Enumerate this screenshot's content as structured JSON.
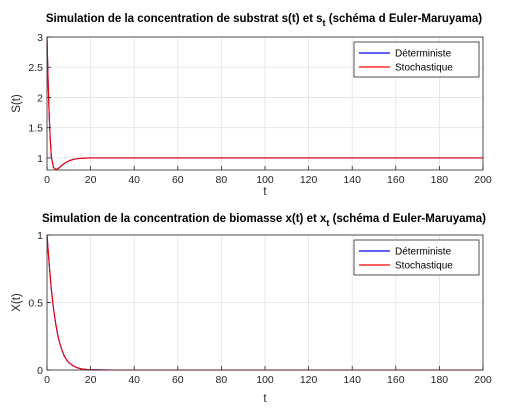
{
  "chart_data": [
    {
      "type": "line",
      "title": "Simulation de la concentration de substrat s(t) et s",
      "title_sub": "t",
      "title_tail": " (schéma d Euler-Maruyama)",
      "xlabel": "t",
      "ylabel": "S(t)",
      "xlim": [
        0,
        200
      ],
      "ylim": [
        0.8,
        3.0
      ],
      "xticks": [
        0,
        20,
        40,
        60,
        80,
        100,
        120,
        140,
        160,
        180,
        200
      ],
      "yticks": [
        1,
        1.5,
        2,
        2.5,
        3
      ],
      "grid": true,
      "legend_position": "top-right",
      "series": [
        {
          "name": "Déterministe",
          "color": "#0000ff",
          "x": [
            0,
            0.5,
            1,
            1.5,
            2,
            3,
            4,
            5,
            6,
            7,
            8,
            10,
            12,
            14,
            16,
            18,
            20,
            25,
            30,
            40,
            60,
            80,
            100,
            120,
            140,
            160,
            180,
            200
          ],
          "y": [
            3.0,
            2.3,
            1.72,
            1.3,
            1.02,
            0.84,
            0.81,
            0.82,
            0.85,
            0.88,
            0.91,
            0.95,
            0.975,
            0.988,
            0.994,
            0.997,
            0.999,
            1.0,
            1.0,
            1.0,
            1.0,
            1.0,
            1.0,
            1.0,
            1.0,
            1.0,
            1.0,
            1.0
          ]
        },
        {
          "name": "Stochastique",
          "color": "#ff0000",
          "x": [
            0,
            0.5,
            1,
            1.5,
            2,
            3,
            4,
            5,
            6,
            7,
            8,
            10,
            12,
            14,
            16,
            18,
            20,
            25,
            30,
            40,
            60,
            80,
            100,
            120,
            140,
            160,
            180,
            200
          ],
          "y": [
            3.0,
            2.28,
            1.7,
            1.29,
            1.01,
            0.84,
            0.81,
            0.82,
            0.85,
            0.88,
            0.91,
            0.95,
            0.976,
            0.988,
            0.994,
            0.997,
            0.999,
            1.0,
            1.0,
            1.0,
            1.0,
            1.0,
            1.0,
            1.0,
            1.0,
            1.0,
            1.0,
            1.0
          ]
        }
      ]
    },
    {
      "type": "line",
      "title": "Simulation de la concentration de biomasse x(t) et x",
      "title_sub": "t",
      "title_tail": " (schéma d Euler-Maruyama)",
      "xlabel": "t",
      "ylabel": "X(t)",
      "xlim": [
        0,
        200
      ],
      "ylim": [
        0,
        1
      ],
      "xticks": [
        0,
        20,
        40,
        60,
        80,
        100,
        120,
        140,
        160,
        180,
        200
      ],
      "yticks": [
        0,
        0.5,
        1
      ],
      "grid": true,
      "legend_position": "top-right",
      "series": [
        {
          "name": "Déterministe",
          "color": "#0000ff",
          "x": [
            0,
            1,
            2,
            3,
            4,
            5,
            6,
            7,
            8,
            9,
            10,
            12,
            14,
            16,
            18,
            20,
            25,
            30,
            40,
            60,
            80,
            100,
            120,
            140,
            160,
            180,
            200
          ],
          "y": [
            1.0,
            0.78,
            0.59,
            0.45,
            0.34,
            0.25,
            0.19,
            0.14,
            0.1,
            0.075,
            0.055,
            0.03,
            0.016,
            0.008,
            0.004,
            0.002,
            0.0005,
            0.0001,
            0,
            0,
            0,
            0,
            0,
            0,
            0,
            0,
            0
          ]
        },
        {
          "name": "Stochastique",
          "color": "#ff0000",
          "x": [
            0,
            1,
            2,
            3,
            4,
            5,
            6,
            7,
            8,
            9,
            10,
            12,
            14,
            16,
            18,
            20,
            25,
            30,
            40,
            60,
            80,
            100,
            120,
            140,
            160,
            180,
            200
          ],
          "y": [
            1.0,
            0.79,
            0.6,
            0.455,
            0.345,
            0.255,
            0.19,
            0.142,
            0.102,
            0.076,
            0.056,
            0.031,
            0.016,
            0.008,
            0.004,
            0.002,
            0.0005,
            0.0001,
            0,
            0,
            0,
            0,
            0,
            0,
            0,
            0,
            0
          ]
        }
      ]
    }
  ]
}
